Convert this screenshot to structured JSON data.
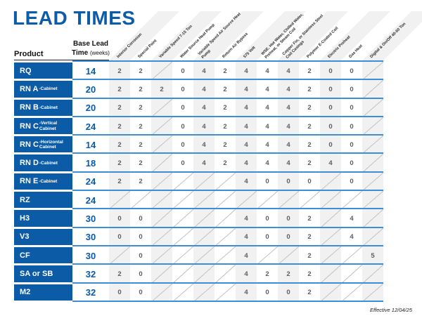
{
  "title": "LEAD TIMES",
  "footer": {
    "effective_note": "Effective 12/04/25"
  },
  "colors": {
    "primary_blue": "#0B5BA7",
    "divider_blue": "#3E8ED6",
    "shade_gray": "#F1F1F1",
    "value_gray": "#5E5E5E",
    "slash_gray": "#C6C6C6"
  },
  "table": {
    "type": "table",
    "product_header": "Product",
    "base_lead_header_line1": "Base Lead",
    "base_lead_header_line2": "Time",
    "base_lead_header_unit": "(weeks)",
    "option_columns": [
      "Interior Corrosion",
      "Special Paint",
      "Variable Speed 7-15 Ton",
      "Water Source Heat Pump",
      "Variable Speed Air Source Heat Pump",
      "Return Air Bypass",
      "575 Volt",
      "WSE, Hot Water, Chilled Water, Preheat, or Steam Coil",
      "Copper Fin, or Stainless Steel Coil Casings",
      "Polymer E-Coated Coil",
      "Electric Preheat",
      "Gas Heat",
      "Digital & On/Off 40-60 Ton"
    ],
    "rows": [
      {
        "product": "RQ",
        "suffix": "",
        "base": "14",
        "values": [
          "2",
          "2",
          null,
          "0",
          "4",
          "2",
          "4",
          "4",
          "4",
          "2",
          "0",
          "0",
          null
        ]
      },
      {
        "product": "RN A",
        "suffix": "-Cabinet",
        "base": "20",
        "values": [
          "2",
          "2",
          "2",
          "0",
          "4",
          "2",
          "4",
          "4",
          "4",
          "2",
          "0",
          "0",
          null
        ]
      },
      {
        "product": "RN B",
        "suffix": "-Cabinet",
        "base": "20",
        "values": [
          "2",
          "2",
          null,
          "0",
          "4",
          "2",
          "4",
          "4",
          "4",
          "2",
          "0",
          "0",
          null
        ]
      },
      {
        "product": "RN C",
        "suffix": "-Vertical Cabinet",
        "base": "24",
        "values": [
          "2",
          "2",
          null,
          "0",
          "4",
          "2",
          "4",
          "4",
          "4",
          "2",
          "0",
          "0",
          null
        ]
      },
      {
        "product": "RN C",
        "suffix": "-Horizontal Cabinet",
        "base": "14",
        "values": [
          "2",
          "2",
          null,
          "0",
          "4",
          "2",
          "4",
          "4",
          "4",
          "2",
          "0",
          "0",
          null
        ]
      },
      {
        "product": "RN D",
        "suffix": "-Cabinet",
        "base": "18",
        "values": [
          "2",
          "2",
          null,
          "0",
          "4",
          "2",
          "4",
          "4",
          "4",
          "2",
          "4",
          "0",
          null
        ]
      },
      {
        "product": "RN E",
        "suffix": "-Cabinet",
        "base": "24",
        "values": [
          "2",
          "2",
          null,
          null,
          null,
          null,
          "4",
          "0",
          "0",
          "0",
          null,
          "0",
          null
        ]
      },
      {
        "product": "RZ",
        "suffix": "",
        "base": "24",
        "values": [
          null,
          null,
          null,
          null,
          null,
          null,
          null,
          null,
          null,
          null,
          null,
          null,
          null
        ]
      },
      {
        "product": "H3",
        "suffix": "",
        "base": "30",
        "values": [
          "0",
          "0",
          null,
          null,
          null,
          null,
          "4",
          "0",
          "0",
          "2",
          null,
          "4",
          null
        ]
      },
      {
        "product": "V3",
        "suffix": "",
        "base": "30",
        "values": [
          "0",
          "0",
          null,
          null,
          null,
          null,
          "4",
          "0",
          "0",
          "2",
          null,
          "4",
          null
        ]
      },
      {
        "product": "CF",
        "suffix": "",
        "base": "30",
        "values": [
          null,
          "0",
          null,
          null,
          null,
          null,
          "4",
          null,
          null,
          "2",
          null,
          null,
          "5"
        ]
      },
      {
        "product": "SA or SB",
        "suffix": "",
        "base": "32",
        "values": [
          "2",
          "0",
          null,
          null,
          null,
          null,
          "4",
          "2",
          "2",
          "2",
          null,
          null,
          null
        ]
      },
      {
        "product": "M2",
        "suffix": "",
        "base": "32",
        "values": [
          "0",
          "0",
          null,
          null,
          null,
          null,
          "4",
          "0",
          "0",
          "2",
          null,
          null,
          null
        ]
      }
    ]
  }
}
